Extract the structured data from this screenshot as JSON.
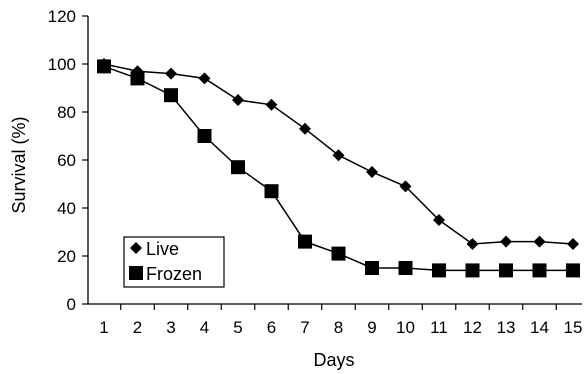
{
  "chart_data": {
    "type": "line",
    "xlabel": "Days",
    "ylabel": "Survival (%)",
    "ylim": [
      0,
      120
    ],
    "yticks": [
      0,
      20,
      40,
      60,
      80,
      100,
      120
    ],
    "categories": [
      "1",
      "2",
      "3",
      "4",
      "5",
      "6",
      "7",
      "8",
      "9",
      "10",
      "11",
      "12",
      "13",
      "14",
      "15"
    ],
    "series": [
      {
        "name": "Live",
        "marker": "diamond",
        "values": [
          100,
          97,
          96,
          94,
          85,
          83,
          73,
          62,
          55,
          49,
          35,
          25,
          26,
          26,
          25
        ]
      },
      {
        "name": "Frozen",
        "marker": "square",
        "values": [
          99,
          94,
          87,
          70,
          57,
          47,
          26,
          21,
          15,
          15,
          14,
          14,
          14,
          14,
          14
        ]
      }
    ],
    "legend_position": "bottom-left",
    "grid": false
  }
}
